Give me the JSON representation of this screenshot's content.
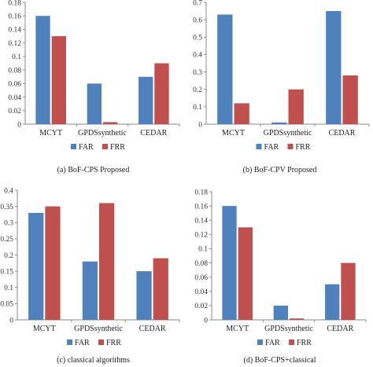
{
  "colors": {
    "far": "#4F81BD",
    "frr": "#C0504D",
    "axis": "#8a8a8a"
  },
  "chart_data": [
    {
      "type": "bar",
      "caption": "(a)   BoF-CPS Proposed",
      "categories": [
        "MCYT",
        "GPDSsynthetic",
        "CEDAR"
      ],
      "series": [
        {
          "name": "FAR",
          "values": [
            0.16,
            0.06,
            0.07
          ]
        },
        {
          "name": "FRR",
          "values": [
            0.13,
            0.003,
            0.09
          ]
        }
      ],
      "ylim": [
        0,
        0.18
      ],
      "yticks": [
        "0",
        "0.02",
        "0.04",
        "0.06",
        "0.08",
        "0.1",
        "0.12",
        "0.14",
        "0.16",
        "0.18"
      ],
      "legend": "bottom"
    },
    {
      "type": "bar",
      "caption": "(b) BoF-CPV Proposed",
      "categories": [
        "MCYT",
        "GPDSsynthetic",
        "CEDAR"
      ],
      "series": [
        {
          "name": "FAR",
          "values": [
            0.63,
            0.01,
            0.65
          ]
        },
        {
          "name": "FRR",
          "values": [
            0.12,
            0.2,
            0.28
          ]
        }
      ],
      "ylim": [
        0,
        0.7
      ],
      "yticks": [
        "0",
        "0.1",
        "0.2",
        "0.3",
        "0.4",
        "0.5",
        "0.6",
        "0.7"
      ],
      "legend": "bottom"
    },
    {
      "type": "bar",
      "caption": "(c) classical algorithms",
      "categories": [
        "MCYT",
        "GPDSsynthetic",
        "CEDAR"
      ],
      "series": [
        {
          "name": "FAR",
          "values": [
            0.33,
            0.18,
            0.15
          ]
        },
        {
          "name": "FRR",
          "values": [
            0.35,
            0.36,
            0.19
          ]
        }
      ],
      "ylim": [
        0,
        0.4
      ],
      "yticks": [
        "0",
        "0.05",
        "0.1",
        "0.15",
        "0.2",
        "0.25",
        "0.3",
        "0.35",
        "0.4"
      ],
      "legend": "bottom"
    },
    {
      "type": "bar",
      "caption": "(d) BoF-CPS+classical",
      "categories": [
        "MCYT",
        "GPDSsynthetic",
        "CEDAR"
      ],
      "series": [
        {
          "name": "FAR",
          "values": [
            0.16,
            0.02,
            0.05
          ]
        },
        {
          "name": "FRR",
          "values": [
            0.13,
            0.002,
            0.08
          ]
        }
      ],
      "ylim": [
        0,
        0.18
      ],
      "yticks": [
        "0",
        "0.02",
        "0.04",
        "0.06",
        "0.08",
        "0.1",
        "0.12",
        "0.14",
        "0.16",
        "0.18"
      ],
      "legend": "bottom"
    }
  ]
}
